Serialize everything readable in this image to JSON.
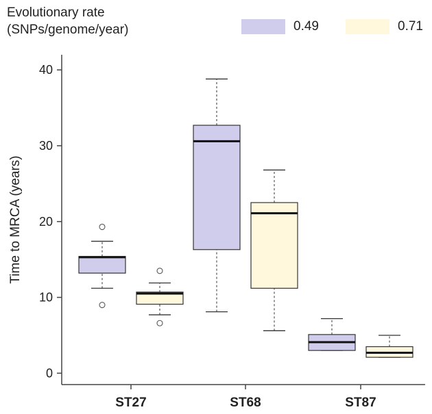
{
  "chart_data": {
    "type": "box",
    "title": "",
    "xlabel": "",
    "ylabel": "Time to MRCA (years)",
    "ylim": [
      -1.5,
      42
    ],
    "yticks": [
      0,
      10,
      20,
      30,
      40
    ],
    "categories": [
      "ST27",
      "ST68",
      "ST87"
    ],
    "legend": {
      "title_lines": [
        "Evolutionary rate",
        "(SNPs/genome/year)"
      ],
      "placement": "top"
    },
    "series": [
      {
        "name": "0.49",
        "color": "#d0cceb",
        "boxes": [
          {
            "category": "ST27",
            "whisker_low": 11.2,
            "q1": 13.2,
            "median": 15.3,
            "q3": 15.4,
            "whisker_high": 17.4,
            "outliers": [
              9.0,
              19.3
            ]
          },
          {
            "category": "ST68",
            "whisker_low": 8.1,
            "q1": 16.3,
            "median": 30.6,
            "q3": 32.7,
            "whisker_high": 38.8,
            "outliers": []
          },
          {
            "category": "ST87",
            "whisker_low": 3.0,
            "q1": 3.0,
            "median": 4.1,
            "q3": 5.1,
            "whisker_high": 7.2,
            "outliers": []
          }
        ]
      },
      {
        "name": "0.71",
        "color": "#fff8dc",
        "boxes": [
          {
            "category": "ST27",
            "whisker_low": 7.7,
            "q1": 9.1,
            "median": 10.5,
            "q3": 10.7,
            "whisker_high": 11.9,
            "outliers": [
              6.6,
              13.5
            ]
          },
          {
            "category": "ST68",
            "whisker_low": 5.6,
            "q1": 11.2,
            "median": 21.1,
            "q3": 22.5,
            "whisker_high": 26.8,
            "outliers": []
          },
          {
            "category": "ST87",
            "whisker_low": 2.1,
            "q1": 2.1,
            "median": 2.7,
            "q3": 3.5,
            "whisker_high": 5.0,
            "outliers": []
          }
        ]
      }
    ]
  }
}
